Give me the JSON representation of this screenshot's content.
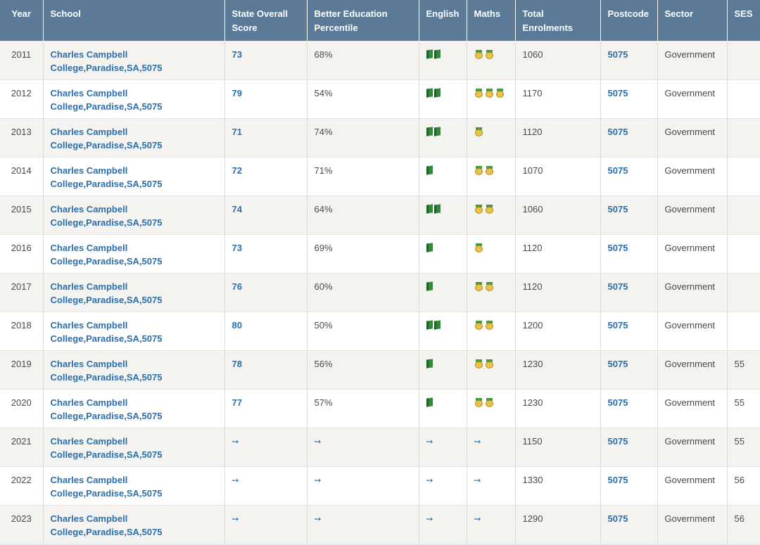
{
  "headers": {
    "year": "Year",
    "school": "School",
    "state_score_l1": "State Overall",
    "state_score_l2": "Score",
    "percentile_l1": "Better Education",
    "percentile_l2": "Percentile",
    "english": "English",
    "maths": "Maths",
    "enrol_l1": "Total",
    "enrol_l2": "Enrolments",
    "postcode": "Postcode",
    "sector": "Sector",
    "ses": "SES"
  },
  "rows": [
    {
      "year": "2011",
      "school_l1": "Charles Campbell",
      "school_l2": "College,Paradise,SA,5075",
      "score": "73",
      "percentile": "68%",
      "english": 2,
      "maths": 2,
      "enrolments": "1060",
      "postcode": "5075",
      "sector": "Government",
      "ses": ""
    },
    {
      "year": "2012",
      "school_l1": "Charles Campbell",
      "school_l2": "College,Paradise,SA,5075",
      "score": "79",
      "percentile": "54%",
      "english": 2,
      "maths": 3,
      "enrolments": "1170",
      "postcode": "5075",
      "sector": "Government",
      "ses": ""
    },
    {
      "year": "2013",
      "school_l1": "Charles Campbell",
      "school_l2": "College,Paradise,SA,5075",
      "score": "71",
      "percentile": "74%",
      "english": 2,
      "maths": 1,
      "enrolments": "1120",
      "postcode": "5075",
      "sector": "Government",
      "ses": ""
    },
    {
      "year": "2014",
      "school_l1": "Charles Campbell",
      "school_l2": "College,Paradise,SA,5075",
      "score": "72",
      "percentile": "71%",
      "english": 1,
      "maths": 2,
      "enrolments": "1070",
      "postcode": "5075",
      "sector": "Government",
      "ses": ""
    },
    {
      "year": "2015",
      "school_l1": "Charles Campbell",
      "school_l2": "College,Paradise,SA,5075",
      "score": "74",
      "percentile": "64%",
      "english": 2,
      "maths": 2,
      "enrolments": "1060",
      "postcode": "5075",
      "sector": "Government",
      "ses": ""
    },
    {
      "year": "2016",
      "school_l1": "Charles Campbell",
      "school_l2": "College,Paradise,SA,5075",
      "score": "73",
      "percentile": "69%",
      "english": 1,
      "maths": 1,
      "enrolments": "1120",
      "postcode": "5075",
      "sector": "Government",
      "ses": ""
    },
    {
      "year": "2017",
      "school_l1": "Charles Campbell",
      "school_l2": "College,Paradise,SA,5075",
      "score": "76",
      "percentile": "60%",
      "english": 1,
      "maths": 2,
      "enrolments": "1120",
      "postcode": "5075",
      "sector": "Government",
      "ses": ""
    },
    {
      "year": "2018",
      "school_l1": "Charles Campbell",
      "school_l2": "College,Paradise,SA,5075",
      "score": "80",
      "percentile": "50%",
      "english": 2,
      "maths": 2,
      "enrolments": "1200",
      "postcode": "5075",
      "sector": "Government",
      "ses": ""
    },
    {
      "year": "2019",
      "school_l1": "Charles Campbell",
      "school_l2": "College,Paradise,SA,5075",
      "score": "78",
      "percentile": "56%",
      "english": 1,
      "maths": 2,
      "enrolments": "1230",
      "postcode": "5075",
      "sector": "Government",
      "ses": "55"
    },
    {
      "year": "2020",
      "school_l1": "Charles Campbell",
      "school_l2": "College,Paradise,SA,5075",
      "score": "77",
      "percentile": "57%",
      "english": 1,
      "maths": 2,
      "enrolments": "1230",
      "postcode": "5075",
      "sector": "Government",
      "ses": "55"
    },
    {
      "year": "2021",
      "school_l1": "Charles Campbell",
      "school_l2": "College,Paradise,SA,5075",
      "score": null,
      "percentile": null,
      "english": null,
      "maths": null,
      "enrolments": "1150",
      "postcode": "5075",
      "sector": "Government",
      "ses": "55"
    },
    {
      "year": "2022",
      "school_l1": "Charles Campbell",
      "school_l2": "College,Paradise,SA,5075",
      "score": null,
      "percentile": null,
      "english": null,
      "maths": null,
      "enrolments": "1330",
      "postcode": "5075",
      "sector": "Government",
      "ses": "56"
    },
    {
      "year": "2023",
      "school_l1": "Charles Campbell",
      "school_l2": "College,Paradise,SA,5075",
      "score": null,
      "percentile": null,
      "english": null,
      "maths": null,
      "enrolments": "1290",
      "postcode": "5075",
      "sector": "Government",
      "ses": "56"
    }
  ],
  "icons": {
    "english": "book-icon",
    "maths": "medal-icon",
    "locked": "login-icon"
  },
  "colors": {
    "header_bg": "#5a7a97",
    "link": "#2c6fab",
    "row_alt": "#f4f3ef"
  }
}
